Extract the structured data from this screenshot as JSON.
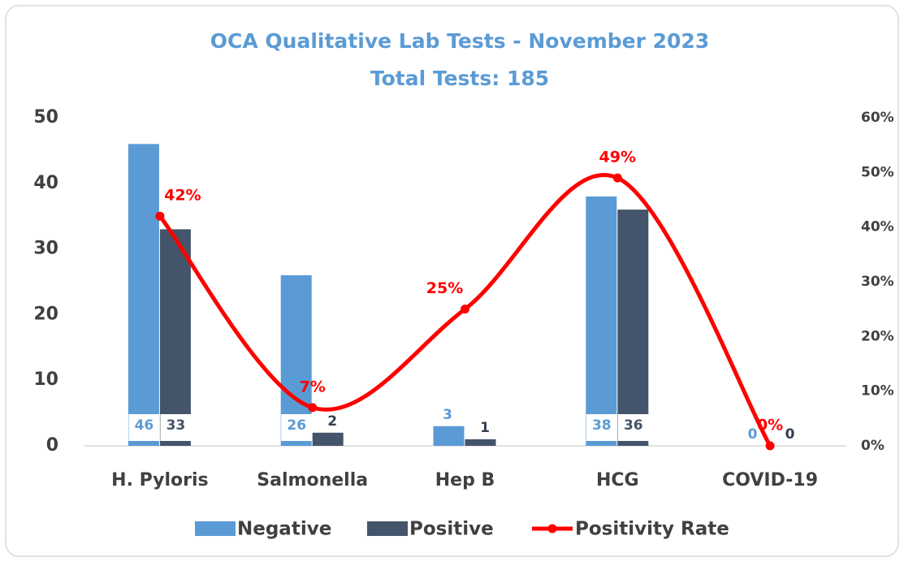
{
  "chart_data": {
    "type": "bar-line",
    "title": "OCA Qualitative Lab Tests - November 2023",
    "subtitle": "Total Tests: 185",
    "categories": [
      "H. Pyloris",
      "Salmonella",
      "Hep B",
      "HCG",
      "COVID-19"
    ],
    "series": [
      {
        "name": "Negative",
        "type": "bar",
        "color": "#5b9bd5",
        "values": [
          46,
          26,
          3,
          38,
          0
        ]
      },
      {
        "name": "Positive",
        "type": "bar",
        "color": "#44546a",
        "values": [
          33,
          2,
          1,
          36,
          0
        ]
      },
      {
        "name": "Positivity Rate",
        "type": "line",
        "axis": "y2",
        "color": "#ff0000",
        "values": [
          42,
          7,
          25,
          49,
          0
        ],
        "value_labels": [
          "42%",
          "7%",
          "25%",
          "49%",
          "0%"
        ]
      }
    ],
    "ylim": [
      0,
      50
    ],
    "yticks": [
      0,
      10,
      20,
      30,
      40,
      50
    ],
    "y2lim": [
      0,
      60
    ],
    "y2ticks": [
      {
        "value": 0,
        "label": "0%"
      },
      {
        "value": 10,
        "label": "10%"
      },
      {
        "value": 20,
        "label": "20%"
      },
      {
        "value": 30,
        "label": "30%"
      },
      {
        "value": 40,
        "label": "40%"
      },
      {
        "value": 50,
        "label": "50%"
      },
      {
        "value": 60,
        "label": "60%"
      }
    ],
    "legend": "bottom"
  }
}
